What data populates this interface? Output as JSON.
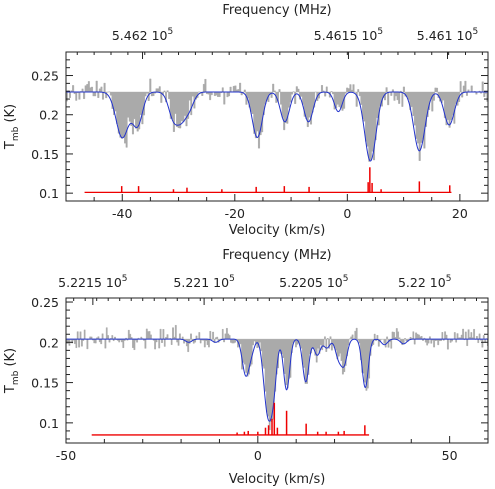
{
  "chart_data": [
    {
      "type": "line",
      "xlabel": "Velocity (km/s)",
      "ylabel": "T",
      "ylabel_sub": "mb",
      "ylabel_unit": "(K)",
      "top_axis_label": "Frequency (MHz)",
      "top_ticks": [
        {
          "label": "5.462 10",
          "exp": "5",
          "v": -36.4
        },
        {
          "label": "5.4615 10",
          "exp": "5",
          "v": 0.2
        },
        {
          "label": "5.461 10",
          "exp": "5",
          "v": 17.8
        }
      ],
      "xlim": [
        -50,
        25
      ],
      "ylim": [
        0.09,
        0.28
      ],
      "xticks": [
        -40,
        -20,
        0,
        20
      ],
      "yticks": [
        0.1,
        0.15,
        0.2,
        0.25
      ],
      "baseline": 0.229,
      "model_lines": [
        {
          "v": -40,
          "depth": 0.058,
          "w": 1.1
        },
        {
          "v": -37.3,
          "depth": 0.042,
          "w": 0.9
        },
        {
          "v": -30.8,
          "depth": 0.036,
          "w": 0.9
        },
        {
          "v": -29.5,
          "depth": 0.018,
          "w": 0.7
        },
        {
          "v": -28.3,
          "depth": 0.024,
          "w": 0.9
        },
        {
          "v": -16,
          "depth": 0.058,
          "w": 0.9
        },
        {
          "v": -11.1,
          "depth": 0.038,
          "w": 0.8
        },
        {
          "v": -6.9,
          "depth": 0.038,
          "w": 0.8
        },
        {
          "v": -1.6,
          "depth": 0.025,
          "w": 0.7
        },
        {
          "v": 4.1,
          "depth": 0.088,
          "w": 1.0
        },
        {
          "v": 12.8,
          "depth": 0.075,
          "w": 1.0
        },
        {
          "v": 18.1,
          "depth": 0.042,
          "w": 0.9
        }
      ],
      "hfs_markers": {
        "baseline": 0.101,
        "xrange": [
          -46.7,
          18.5
        ],
        "lines": [
          {
            "v": -40.1,
            "h": 0.008
          },
          {
            "v": -37.1,
            "h": 0.008
          },
          {
            "v": -30.9,
            "h": 0.004
          },
          {
            "v": -28.5,
            "h": 0.006
          },
          {
            "v": -22.3,
            "h": 0.004
          },
          {
            "v": -16.2,
            "h": 0.007
          },
          {
            "v": -11.2,
            "h": 0.008
          },
          {
            "v": -6.8,
            "h": 0.007
          },
          {
            "v": 3.7,
            "h": 0.013
          },
          {
            "v": 4.0,
            "h": 0.032
          },
          {
            "v": 4.4,
            "h": 0.012
          },
          {
            "v": 6.0,
            "h": 0.004
          },
          {
            "v": 12.8,
            "h": 0.014
          },
          {
            "v": 18.2,
            "h": 0.009
          }
        ]
      }
    },
    {
      "type": "line",
      "xlabel": "Velocity (km/s)",
      "ylabel": "T",
      "ylabel_sub": "mb",
      "ylabel_unit": "(K)",
      "top_axis_label": "Frequency (MHz)",
      "top_ticks": [
        {
          "label": "5.2215 10",
          "exp": "5",
          "v": -43.0
        },
        {
          "label": "5.221 10",
          "exp": "5",
          "v": -14.0
        },
        {
          "label": "5.2205 10",
          "exp": "5",
          "v": 14.6
        },
        {
          "label": "5.22 10",
          "exp": "5",
          "v": 43.5
        }
      ],
      "xlim": [
        -50,
        60
      ],
      "ylim": [
        0.075,
        0.255
      ],
      "xticks": [
        -50,
        0,
        50
      ],
      "yticks": [
        0.1,
        0.15,
        0.2,
        0.25
      ],
      "baseline": 0.204,
      "model_lines": [
        {
          "v": -3.6,
          "depth": 0.021,
          "w": 0.8
        },
        {
          "v": -2.8,
          "depth": 0.03,
          "w": 0.8
        },
        {
          "v": -1.5,
          "depth": 0.012,
          "w": 0.7
        },
        {
          "v": 2.0,
          "depth": 0.035,
          "w": 0.9
        },
        {
          "v": 3.0,
          "depth": 0.07,
          "w": 1.0
        },
        {
          "v": 4.2,
          "depth": 0.04,
          "w": 0.8
        },
        {
          "v": 7.5,
          "depth": 0.063,
          "w": 0.8
        },
        {
          "v": 12.5,
          "depth": 0.053,
          "w": 0.8
        },
        {
          "v": 15.5,
          "depth": 0.02,
          "w": 0.8
        },
        {
          "v": 18.0,
          "depth": 0.011,
          "w": 0.8
        },
        {
          "v": 21.0,
          "depth": 0.022,
          "w": 0.8
        },
        {
          "v": 22.5,
          "depth": 0.03,
          "w": 0.8
        },
        {
          "v": 28.0,
          "depth": 0.06,
          "w": 0.8
        },
        {
          "v": 33.0,
          "depth": 0.007,
          "w": 0.8
        },
        {
          "v": 38.0,
          "depth": 0.006,
          "w": 0.8
        },
        {
          "v": -18.0,
          "depth": 0.004,
          "w": 0.8
        },
        {
          "v": -11.0,
          "depth": 0.004,
          "w": 0.8
        }
      ],
      "hfs_markers": {
        "baseline": 0.085,
        "xrange": [
          -43.3,
          29.0
        ],
        "lines": [
          {
            "v": -5.4,
            "h": 0.003
          },
          {
            "v": -3.5,
            "h": 0.004
          },
          {
            "v": -2.5,
            "h": 0.005
          },
          {
            "v": 0.0,
            "h": 0.004
          },
          {
            "v": 2.0,
            "h": 0.009
          },
          {
            "v": 2.8,
            "h": 0.012
          },
          {
            "v": 3.7,
            "h": 0.02
          },
          {
            "v": 4.3,
            "h": 0.04
          },
          {
            "v": 5.1,
            "h": 0.009
          },
          {
            "v": 7.5,
            "h": 0.03
          },
          {
            "v": 12.6,
            "h": 0.014
          },
          {
            "v": 15.6,
            "h": 0.004
          },
          {
            "v": 17.8,
            "h": 0.004
          },
          {
            "v": 21.0,
            "h": 0.004
          },
          {
            "v": 22.5,
            "h": 0.005
          },
          {
            "v": 27.9,
            "h": 0.012
          }
        ]
      }
    }
  ],
  "colors": {
    "observed_fill": "#aaaaaa",
    "model_line": "#2233cc",
    "hfs_markers": "#ee0000",
    "axis": "#222222"
  }
}
